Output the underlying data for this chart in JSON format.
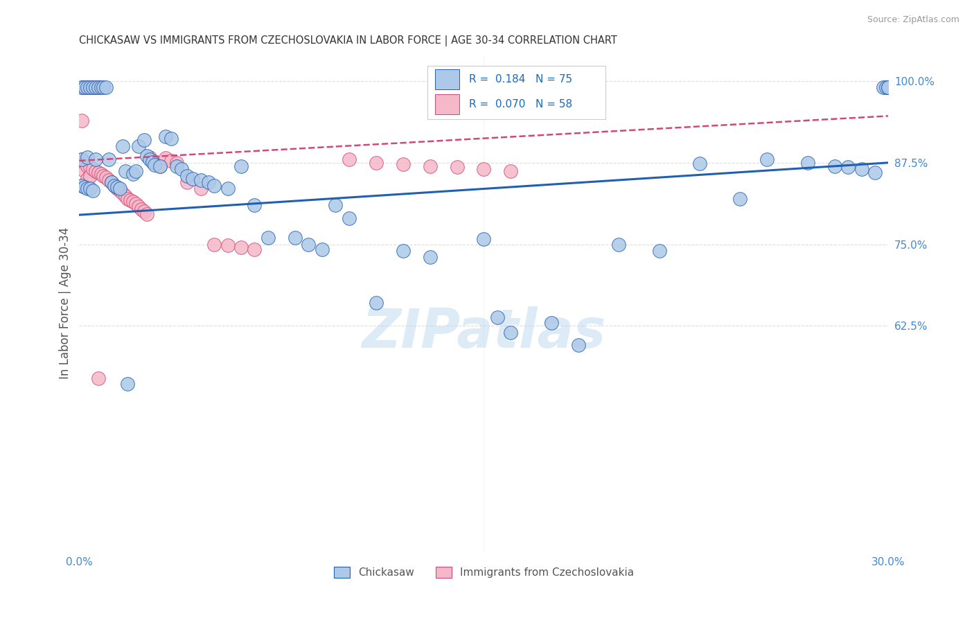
{
  "title": "CHICKASAW VS IMMIGRANTS FROM CZECHOSLOVAKIA IN LABOR FORCE | AGE 30-34 CORRELATION CHART",
  "source": "Source: ZipAtlas.com",
  "ylabel": "In Labor Force | Age 30-34",
  "R_blue": 0.184,
  "N_blue": 75,
  "R_pink": 0.07,
  "N_pink": 58,
  "blue_color": "#adc8e8",
  "pink_color": "#f5b8c8",
  "blue_line_color": "#2060b0",
  "pink_line_color": "#d04878",
  "axis_label_color": "#4488cc",
  "grid_color": "#dddddd",
  "watermark": "ZIPatlas",
  "legend_blue_label": "Chickasaw",
  "legend_pink_label": "Immigrants from Czechoslovakia",
  "xmin": 0.0,
  "xmax": 0.3,
  "ymin": 0.28,
  "ymax": 1.04,
  "ytick_values": [
    1.0,
    0.875,
    0.75,
    0.625
  ],
  "ytick_labels": [
    "100.0%",
    "87.5%",
    "75.0%",
    "62.5%"
  ],
  "blue_trend": [
    0.795,
    0.875
  ],
  "pink_trend": [
    0.878,
    0.95
  ],
  "blue_x": [
    0.001,
    0.001,
    0.001,
    0.002,
    0.002,
    0.003,
    0.003,
    0.003,
    0.004,
    0.004,
    0.005,
    0.005,
    0.006,
    0.006,
    0.007,
    0.008,
    0.009,
    0.01,
    0.011,
    0.012,
    0.013,
    0.014,
    0.015,
    0.016,
    0.017,
    0.018,
    0.02,
    0.021,
    0.022,
    0.024,
    0.025,
    0.026,
    0.027,
    0.028,
    0.03,
    0.032,
    0.034,
    0.036,
    0.038,
    0.04,
    0.042,
    0.045,
    0.048,
    0.05,
    0.055,
    0.06,
    0.065,
    0.07,
    0.08,
    0.085,
    0.09,
    0.095,
    0.1,
    0.11,
    0.12,
    0.13,
    0.15,
    0.155,
    0.16,
    0.175,
    0.185,
    0.2,
    0.215,
    0.23,
    0.245,
    0.255,
    0.27,
    0.28,
    0.285,
    0.29,
    0.295,
    0.298,
    0.299,
    0.3,
    0.3
  ],
  "blue_y": [
    0.99,
    0.88,
    0.84,
    0.99,
    0.838,
    0.99,
    0.883,
    0.836,
    0.99,
    0.835,
    0.99,
    0.832,
    0.99,
    0.88,
    0.99,
    0.99,
    0.99,
    0.99,
    0.88,
    0.845,
    0.84,
    0.838,
    0.835,
    0.9,
    0.862,
    0.536,
    0.858,
    0.862,
    0.9,
    0.91,
    0.885,
    0.88,
    0.876,
    0.872,
    0.87,
    0.915,
    0.912,
    0.87,
    0.865,
    0.855,
    0.85,
    0.848,
    0.845,
    0.84,
    0.835,
    0.87,
    0.81,
    0.76,
    0.76,
    0.75,
    0.742,
    0.81,
    0.79,
    0.66,
    0.74,
    0.73,
    0.758,
    0.638,
    0.615,
    0.63,
    0.596,
    0.75,
    0.74,
    0.874,
    0.82,
    0.88,
    0.875,
    0.87,
    0.868,
    0.865,
    0.86,
    0.99,
    0.99,
    0.99,
    0.99
  ],
  "pink_x": [
    0.001,
    0.001,
    0.001,
    0.001,
    0.002,
    0.002,
    0.002,
    0.003,
    0.003,
    0.003,
    0.004,
    0.004,
    0.004,
    0.005,
    0.005,
    0.006,
    0.006,
    0.007,
    0.007,
    0.008,
    0.009,
    0.01,
    0.011,
    0.012,
    0.013,
    0.014,
    0.015,
    0.016,
    0.017,
    0.018,
    0.019,
    0.02,
    0.021,
    0.022,
    0.023,
    0.024,
    0.025,
    0.026,
    0.027,
    0.028,
    0.03,
    0.032,
    0.034,
    0.036,
    0.04,
    0.045,
    0.05,
    0.055,
    0.06,
    0.065,
    0.1,
    0.11,
    0.12,
    0.13,
    0.14,
    0.15,
    0.16,
    0.007
  ],
  "pink_y": [
    0.99,
    0.94,
    0.88,
    0.84,
    0.99,
    0.875,
    0.862,
    0.99,
    0.87,
    0.85,
    0.99,
    0.868,
    0.855,
    0.99,
    0.865,
    0.99,
    0.862,
    0.99,
    0.86,
    0.858,
    0.855,
    0.852,
    0.848,
    0.845,
    0.84,
    0.836,
    0.832,
    0.828,
    0.824,
    0.82,
    0.818,
    0.815,
    0.812,
    0.808,
    0.804,
    0.8,
    0.796,
    0.883,
    0.878,
    0.875,
    0.87,
    0.882,
    0.878,
    0.875,
    0.845,
    0.835,
    0.75,
    0.748,
    0.745,
    0.742,
    0.88,
    0.875,
    0.873,
    0.87,
    0.868,
    0.865,
    0.862,
    0.545
  ]
}
